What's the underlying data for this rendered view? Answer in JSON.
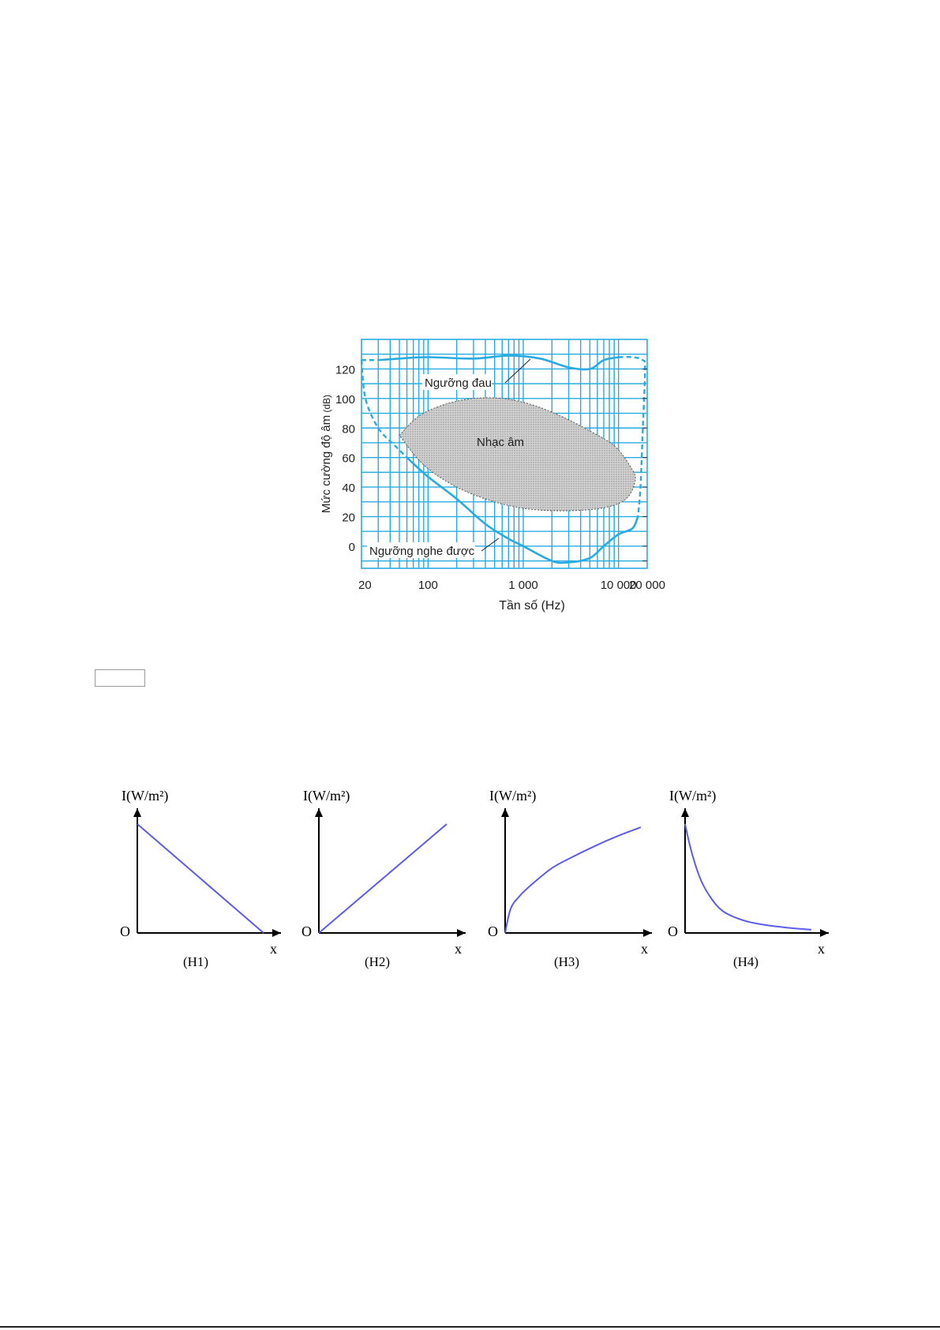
{
  "chart_data": [
    {
      "type": "area",
      "xlabel": "Tần số (Hz)",
      "ylabel": "Mức cường độ âm",
      "ylabel_unit": "(dB)",
      "x_scale": "log",
      "xlim": [
        20,
        20000
      ],
      "ylim": [
        -15,
        140
      ],
      "x_ticks": [
        {
          "value": 20,
          "label": "20"
        },
        {
          "value": 100,
          "label": "100"
        },
        {
          "value": 1000,
          "label": "1 000"
        },
        {
          "value": 10000,
          "label": "10 000"
        },
        {
          "value": 20000,
          "label": "20 000"
        }
      ],
      "y_ticks": [
        {
          "value": 0,
          "label": "0"
        },
        {
          "value": 20,
          "label": "20"
        },
        {
          "value": 40,
          "label": "40"
        },
        {
          "value": 60,
          "label": "60"
        },
        {
          "value": 80,
          "label": "80"
        },
        {
          "value": 100,
          "label": "100"
        },
        {
          "value": 120,
          "label": "120"
        }
      ],
      "grid": true,
      "colors": {
        "curve": "#29abe2",
        "grid": "#29abe2",
        "region": "#bdbdbd"
      },
      "series": [
        {
          "name": "Ngưỡng đau",
          "style": "solid",
          "x": [
            30,
            50,
            100,
            300,
            700,
            1500,
            3000,
            5000,
            7000,
            10000
          ],
          "y": [
            126,
            127,
            128,
            127,
            129,
            127,
            121,
            120,
            126,
            128
          ]
        },
        {
          "name": "Ngưỡng nghe được",
          "style": "solid",
          "x": [
            60,
            100,
            200,
            400,
            700,
            1000,
            2000,
            3000,
            5000,
            7000,
            10000,
            14000,
            16000
          ],
          "y": [
            60,
            47,
            32,
            15,
            5,
            0,
            -10,
            -11,
            -8,
            0,
            8,
            12,
            20
          ]
        }
      ],
      "dashed_extensions": [
        {
          "x": [
            20,
            30
          ],
          "y": [
            126,
            126
          ]
        },
        {
          "x": [
            20,
            22,
            30,
            45,
            60
          ],
          "y": [
            126,
            100,
            80,
            68,
            60
          ]
        },
        {
          "x": [
            10000,
            14000,
            18000,
            19000,
            18000,
            17000,
            16000
          ],
          "y": [
            128,
            128,
            126,
            120,
            80,
            40,
            20
          ]
        }
      ],
      "region": {
        "name": "Nhạc âm",
        "boundary_x": [
          50,
          80,
          150,
          300,
          600,
          1200,
          2500,
          5000,
          9000,
          13000,
          15000,
          12000,
          7000,
          3000,
          1200,
          500,
          200,
          90,
          50
        ],
        "boundary_y": [
          75,
          88,
          96,
          100,
          100,
          96,
          88,
          78,
          68,
          55,
          45,
          32,
          26,
          24,
          25,
          30,
          40,
          55,
          75
        ]
      },
      "annotations": [
        "Ngưỡng đau",
        "Nhạc âm",
        "Ngưỡng nghe được"
      ]
    },
    {
      "type": "line",
      "name": "H1",
      "label": "(H1)",
      "ylabel": "I(W/m²)",
      "ylabel_unit": "(W/m²)",
      "xlabel": "x",
      "origin": "O",
      "shape": "decreasing-linear",
      "x": [
        0,
        1
      ],
      "y": [
        1,
        0
      ]
    },
    {
      "type": "line",
      "name": "H2",
      "label": "(H2)",
      "ylabel": "I(W/m²)",
      "ylabel_unit": "(W/m²)",
      "xlabel": "x",
      "origin": "O",
      "shape": "increasing-linear",
      "x": [
        0,
        1
      ],
      "y": [
        0,
        1
      ]
    },
    {
      "type": "line",
      "name": "H3",
      "label": "(H3)",
      "ylabel": "I(W/m²)",
      "ylabel_unit": "(W/m²)",
      "xlabel": "x",
      "origin": "O",
      "shape": "increasing-sqrt",
      "x": [
        0,
        0.04,
        0.1,
        0.2,
        0.35,
        0.5,
        0.7,
        0.85,
        1.0
      ],
      "y": [
        0,
        0.22,
        0.33,
        0.45,
        0.6,
        0.7,
        0.82,
        0.9,
        0.97
      ]
    },
    {
      "type": "line",
      "name": "H4",
      "label": "(H4)",
      "ylabel": "I(W/m²)",
      "ylabel_unit": "(W/m²)",
      "xlabel": "x",
      "origin": "O",
      "shape": "decreasing-hyperbolic",
      "x": [
        0,
        0.05,
        0.12,
        0.2,
        0.3,
        0.45,
        0.6,
        0.8,
        1.0
      ],
      "y": [
        1,
        0.75,
        0.5,
        0.33,
        0.2,
        0.12,
        0.08,
        0.05,
        0.03
      ]
    }
  ]
}
